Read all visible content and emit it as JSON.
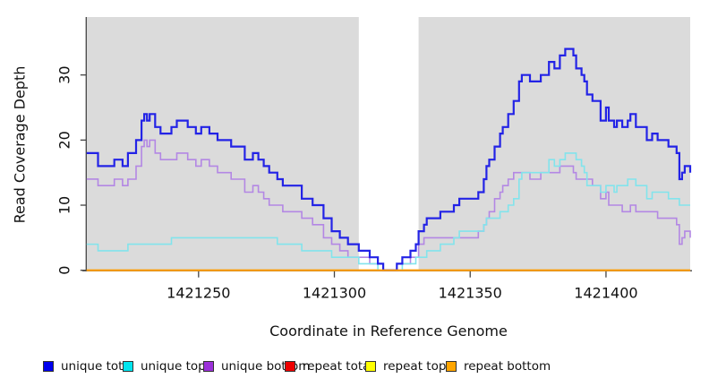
{
  "figure": {
    "xlabel": "Coordinate in Reference Genome",
    "ylabel": "Read Coverage Depth",
    "plot_bg_color": "#dbdbdb",
    "gap_band_color": "#ffffff",
    "axis_color": "#444444",
    "text_color": "#111111"
  },
  "legend": {
    "items": [
      {
        "label": "unique total",
        "color": "#0000ee"
      },
      {
        "label": "unique top",
        "color": "#00e5ee"
      },
      {
        "label": "unique bottom",
        "color": "#9b30d9"
      },
      {
        "label": "repeat total",
        "color": "#ee0000"
      },
      {
        "label": "repeat top",
        "color": "#ffff00"
      },
      {
        "label": "repeat bottom",
        "color": "#ffa500"
      }
    ]
  },
  "chart_data": {
    "type": "line",
    "step": true,
    "title": "",
    "xlabel": "Coordinate in Reference Genome",
    "ylabel": "Read Coverage Depth",
    "xlim": [
      1421208.8,
      1421431
    ],
    "ylim": [
      0,
      38.9
    ],
    "xticks": [
      1421250,
      1421300,
      1421350,
      1421400
    ],
    "yticks": [
      0,
      10,
      20,
      30
    ],
    "grid": false,
    "legend_position": "bottom",
    "gap_region": [
      1421309,
      1421331
    ],
    "x": [
      1421209,
      1421213,
      1421219,
      1421222,
      1421224,
      1421227,
      1421229,
      1421230,
      1421231,
      1421232,
      1421234,
      1421236,
      1421240,
      1421242,
      1421246,
      1421249,
      1421251,
      1421254,
      1421257,
      1421262,
      1421267,
      1421270,
      1421272,
      1421274,
      1421276,
      1421279,
      1421281,
      1421288,
      1421292,
      1421296,
      1421299,
      1421302,
      1421305,
      1421309,
      1421313,
      1421316,
      1421318,
      1421323,
      1421325,
      1421328,
      1421330,
      1421331,
      1421333,
      1421334,
      1421339,
      1421344,
      1421346,
      1421353,
      1421355,
      1421356,
      1421357,
      1421359,
      1421361,
      1421362,
      1421364,
      1421366,
      1421368,
      1421369,
      1421372,
      1421376,
      1421379,
      1421381,
      1421383,
      1421385,
      1421388,
      1421389,
      1421391,
      1421392,
      1421393,
      1421395,
      1421398,
      1421400,
      1421401,
      1421403,
      1421404,
      1421406,
      1421408,
      1421409,
      1421411,
      1421415,
      1421417,
      1421419,
      1421423,
      1421426,
      1421427,
      1421428,
      1421429,
      1421431
    ],
    "series": [
      {
        "name": "unique total",
        "color": "#2323e6",
        "line_width": 2.2,
        "values": [
          18,
          16,
          17,
          16,
          18,
          20,
          23,
          24,
          23,
          24,
          22,
          21,
          22,
          23,
          22,
          21,
          22,
          21,
          20,
          19,
          17,
          18,
          17,
          16,
          15,
          14,
          13,
          11,
          10,
          8,
          6,
          5,
          4,
          3,
          2,
          1,
          0,
          1,
          2,
          3,
          4,
          6,
          7,
          8,
          9,
          10,
          11,
          12,
          14,
          16,
          17,
          19,
          21,
          22,
          24,
          26,
          29,
          30,
          29,
          30,
          32,
          31,
          33,
          34,
          33,
          31,
          30,
          29,
          27,
          26,
          23,
          25,
          23,
          22,
          23,
          22,
          23,
          24,
          22,
          20,
          21,
          20,
          19,
          18,
          14,
          15,
          16,
          15
        ]
      },
      {
        "name": "unique top",
        "color": "#82e4ec",
        "line_width": 1.6,
        "values": [
          4,
          3,
          3,
          3,
          4,
          4,
          4,
          4,
          4,
          4,
          4,
          4,
          5,
          5,
          5,
          5,
          5,
          5,
          5,
          5,
          5,
          5,
          5,
          5,
          5,
          4,
          4,
          3,
          3,
          3,
          2,
          2,
          2,
          1,
          1,
          0,
          0,
          0,
          1,
          1,
          2,
          2,
          2,
          3,
          4,
          5,
          6,
          6,
          7,
          8,
          8,
          8,
          9,
          9,
          10,
          11,
          14,
          15,
          15,
          15,
          17,
          16,
          17,
          18,
          18,
          17,
          16,
          15,
          13,
          13,
          12,
          13,
          13,
          12,
          13,
          13,
          14,
          14,
          13,
          11,
          12,
          12,
          11,
          11,
          10,
          10,
          10,
          10
        ]
      },
      {
        "name": "unique bottom",
        "color": "#b387e4",
        "line_width": 1.6,
        "values": [
          14,
          13,
          14,
          13,
          14,
          16,
          19,
          20,
          19,
          20,
          18,
          17,
          17,
          18,
          17,
          16,
          17,
          16,
          15,
          14,
          12,
          13,
          12,
          11,
          10,
          10,
          9,
          8,
          7,
          5,
          4,
          3,
          2,
          2,
          1,
          1,
          0,
          1,
          1,
          2,
          2,
          4,
          5,
          5,
          5,
          5,
          5,
          6,
          7,
          8,
          9,
          11,
          12,
          13,
          14,
          15,
          15,
          15,
          14,
          15,
          15,
          15,
          16,
          16,
          15,
          14,
          14,
          14,
          14,
          13,
          11,
          12,
          10,
          10,
          10,
          9,
          9,
          10,
          9,
          9,
          9,
          8,
          8,
          7,
          4,
          5,
          6,
          5
        ]
      },
      {
        "name": "repeat total",
        "color": "#dd0000",
        "line_width": 1.6,
        "constant": 0
      },
      {
        "name": "repeat top",
        "color": "#ffff00",
        "line_width": 1.6,
        "constant": 0
      },
      {
        "name": "repeat bottom",
        "color": "#ff9d00",
        "line_width": 2.0,
        "constant": 0
      }
    ]
  }
}
